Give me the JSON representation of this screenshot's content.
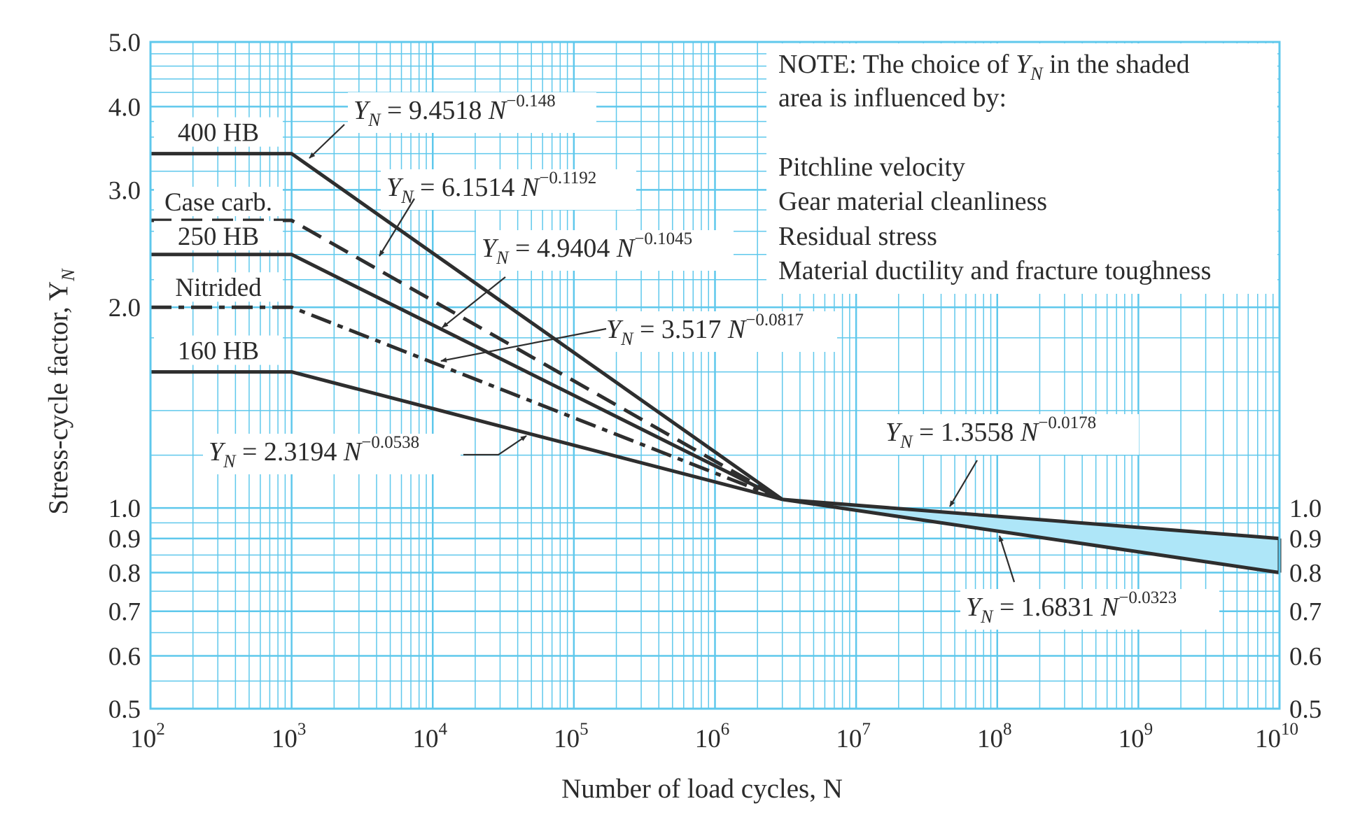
{
  "chart_data": {
    "type": "line",
    "x_scale": "log",
    "y_scale": "log",
    "xlim": [
      100,
      10000000000
    ],
    "ylim": [
      0.5,
      5.0
    ],
    "grid": true,
    "legend": "none",
    "xlabel": "Number of load cycles, N",
    "ylabel": "Stress-cycle factor, Y",
    "ylabel_sub": "N",
    "x_ticks": [
      {
        "base": "10",
        "exp": "2",
        "value": 100
      },
      {
        "base": "10",
        "exp": "3",
        "value": 1000
      },
      {
        "base": "10",
        "exp": "4",
        "value": 10000
      },
      {
        "base": "10",
        "exp": "5",
        "value": 100000
      },
      {
        "base": "10",
        "exp": "6",
        "value": 1000000
      },
      {
        "base": "10",
        "exp": "7",
        "value": 10000000
      },
      {
        "base": "10",
        "exp": "8",
        "value": 100000000
      },
      {
        "base": "10",
        "exp": "9",
        "value": 1000000000
      },
      {
        "base": "10",
        "exp": "10",
        "value": 10000000000
      }
    ],
    "y_ticks_left": [
      {
        "label": "5.0",
        "value": 5.0
      },
      {
        "label": "4.0",
        "value": 4.0
      },
      {
        "label": "3.0",
        "value": 3.0
      },
      {
        "label": "2.0",
        "value": 2.0
      },
      {
        "label": "1.0",
        "value": 1.0
      },
      {
        "label": "0.9",
        "value": 0.9
      },
      {
        "label": "0.8",
        "value": 0.8
      },
      {
        "label": "0.7",
        "value": 0.7
      },
      {
        "label": "0.6",
        "value": 0.6
      },
      {
        "label": "0.5",
        "value": 0.5
      }
    ],
    "y_ticks_right": [
      {
        "label": "1.0",
        "value": 1.0
      },
      {
        "label": "0.9",
        "value": 0.9
      },
      {
        "label": "0.8",
        "value": 0.8
      },
      {
        "label": "0.7",
        "value": 0.7
      },
      {
        "label": "0.6",
        "value": 0.6
      },
      {
        "label": "0.5",
        "value": 0.5
      }
    ],
    "series": [
      {
        "name": "400 HB",
        "style": "solid",
        "x": [
          100,
          1000,
          3000000
        ],
        "y": [
          3.4,
          3.4,
          1.03
        ]
      },
      {
        "name": "Case carb.",
        "style": "dashed",
        "x": [
          100,
          1000,
          3000000
        ],
        "y": [
          2.7,
          2.7,
          1.03
        ]
      },
      {
        "name": "250 HB",
        "style": "solid",
        "x": [
          100,
          1000,
          3000000
        ],
        "y": [
          2.4,
          2.4,
          1.03
        ]
      },
      {
        "name": "Nitrided",
        "style": "dashdot",
        "x": [
          100,
          1000,
          3000000
        ],
        "y": [
          2.0,
          2.0,
          1.03
        ]
      },
      {
        "name": "160 HB",
        "style": "solid",
        "x": [
          100,
          1000,
          3000000
        ],
        "y": [
          1.6,
          1.6,
          1.03
        ]
      },
      {
        "name": "",
        "style": "solid",
        "x": [
          3000000,
          10000000000
        ],
        "y": [
          1.03,
          0.9
        ]
      },
      {
        "name": "",
        "style": "solid",
        "x": [
          3000000,
          10000000000
        ],
        "y": [
          1.03,
          0.8
        ]
      }
    ],
    "shaded_region": {
      "x": [
        3000000,
        10000000000
      ],
      "y_upper": [
        1.03,
        0.9
      ],
      "y_lower": [
        1.03,
        0.8
      ],
      "color": "#aee6f8"
    },
    "colors": {
      "grid": "#5fc8ec",
      "line": "#2e2e2e",
      "shade": "#aee6f8"
    },
    "equations": [
      {
        "coef": "9.4518",
        "exp": "−0.148"
      },
      {
        "coef": "6.1514",
        "exp": "−0.1192"
      },
      {
        "coef": "4.9404",
        "exp": "−0.1045"
      },
      {
        "coef": "3.517",
        "exp": "−0.0817"
      },
      {
        "coef": "2.3194",
        "exp": "−0.0538"
      },
      {
        "coef": "1.3558",
        "exp": "−0.0178"
      },
      {
        "coef": "1.6831",
        "exp": "−0.0323"
      }
    ],
    "equation_prefix": {
      "Y": "Y",
      "sub": "N",
      "eq": " = ",
      "N": "N"
    },
    "note": {
      "line1_a": "NOTE:   The choice of ",
      "line1_Y": "Y",
      "line1_sub": "N",
      "line1_b": " in the shaded",
      "line2": "area is influenced by:",
      "items": [
        "Pitchline velocity",
        "Gear material cleanliness",
        "Residual stress",
        "Material ductility and fracture toughness"
      ]
    }
  }
}
